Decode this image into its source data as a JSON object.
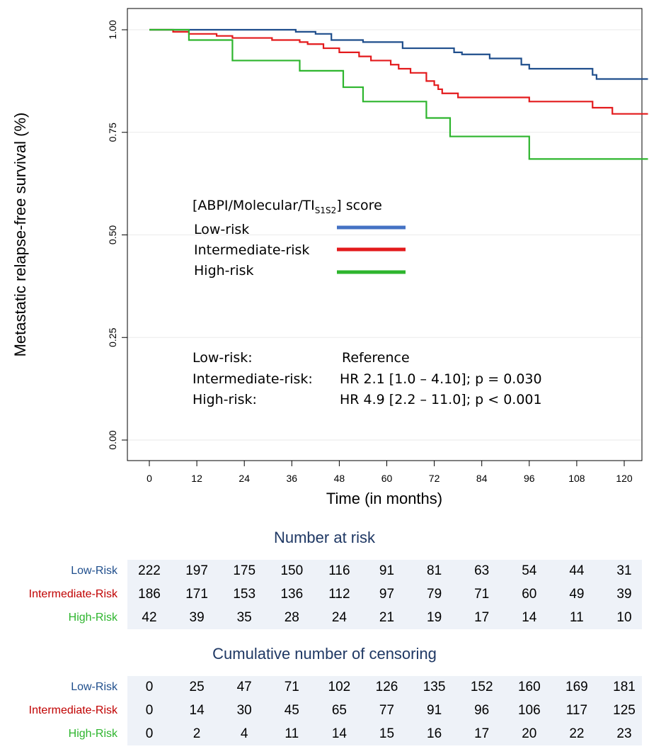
{
  "chart_data": {
    "type": "line",
    "ylabel": "Metastatic relapse-free survival (%)",
    "xlabel": "Time (in months)",
    "xlim": [
      0,
      126
    ],
    "ylim": [
      0,
      1.04
    ],
    "x_ticks": [
      0,
      12,
      24,
      36,
      48,
      60,
      72,
      84,
      96,
      108,
      120
    ],
    "y_ticks": [
      "0.00",
      "0.25",
      "0.50",
      "0.75",
      "1.00"
    ],
    "y_tick_values": [
      0,
      0.25,
      0.5,
      0.75,
      1.0
    ],
    "grid": "horizontal",
    "series": [
      {
        "name": "Low-risk",
        "color": "#1f4e8c",
        "x": [
          0,
          10,
          21,
          35,
          37,
          42,
          46,
          54,
          64,
          77,
          79,
          86,
          94,
          96,
          112,
          113,
          126
        ],
        "y": [
          1.0,
          1.0,
          1.0,
          1.0,
          0.995,
          0.99,
          0.975,
          0.97,
          0.955,
          0.945,
          0.94,
          0.93,
          0.915,
          0.905,
          0.89,
          0.88,
          0.88
        ]
      },
      {
        "name": "Intermediate-risk",
        "color": "#e31a1c",
        "x": [
          0,
          6,
          10,
          17,
          21,
          31,
          38,
          40,
          44,
          48,
          53,
          56,
          61,
          63,
          66,
          70,
          72,
          73,
          74,
          78,
          96,
          112,
          117,
          126
        ],
        "y": [
          1.0,
          0.995,
          0.99,
          0.985,
          0.98,
          0.975,
          0.97,
          0.965,
          0.955,
          0.945,
          0.935,
          0.925,
          0.915,
          0.905,
          0.895,
          0.875,
          0.865,
          0.855,
          0.845,
          0.835,
          0.825,
          0.81,
          0.795,
          0.795
        ]
      },
      {
        "name": "High-risk",
        "color": "#2db52d",
        "x": [
          0,
          10,
          21,
          38,
          49,
          54,
          70,
          76,
          96,
          126
        ],
        "y": [
          1.0,
          0.975,
          0.925,
          0.9,
          0.86,
          0.825,
          0.785,
          0.74,
          0.685,
          0.685
        ]
      }
    ]
  },
  "legend": {
    "title_main": "[ABPI/Molecular/TI",
    "title_sub": "S1S2",
    "title_end": "] score",
    "items": [
      {
        "label": "Low-risk",
        "color": "#4472c4"
      },
      {
        "label": "Intermediate-risk",
        "color": "#e31a1c"
      },
      {
        "label": "High-risk",
        "color": "#2db52d"
      }
    ]
  },
  "hazard_ratios": [
    {
      "group": "Low-risk:",
      "value": "Reference"
    },
    {
      "group": "Intermediate-risk:",
      "value": "HR 2.1 [1.0 – 4.10]; p = 0.030"
    },
    {
      "group": "High-risk:",
      "value": "HR 4.9 [2.2 – 11.0]; p < 0.001"
    }
  ],
  "risk_table": {
    "title": "Number at risk",
    "rows": [
      {
        "label": "Low-Risk",
        "color": "#1f4e8c",
        "values": [
          "222",
          "197",
          "175",
          "150",
          "116",
          "91",
          "81",
          "63",
          "54",
          "44",
          "31"
        ]
      },
      {
        "label": "Intermediate-Risk",
        "color": "#c00000",
        "values": [
          "186",
          "171",
          "153",
          "136",
          "112",
          "97",
          "79",
          "71",
          "60",
          "49",
          "39"
        ]
      },
      {
        "label": "High-Risk",
        "color": "#2db52d",
        "values": [
          "42",
          "39",
          "35",
          "28",
          "24",
          "21",
          "19",
          "17",
          "14",
          "11",
          "10"
        ]
      }
    ]
  },
  "censor_table": {
    "title": "Cumulative number of censoring",
    "rows": [
      {
        "label": "Low-Risk",
        "color": "#1f4e8c",
        "values": [
          "0",
          "25",
          "47",
          "71",
          "102",
          "126",
          "135",
          "152",
          "160",
          "169",
          "181"
        ]
      },
      {
        "label": "Intermediate-Risk",
        "color": "#c00000",
        "values": [
          "0",
          "14",
          "30",
          "45",
          "65",
          "77",
          "91",
          "96",
          "106",
          "117",
          "125"
        ]
      },
      {
        "label": "High-Risk",
        "color": "#2db52d",
        "values": [
          "0",
          "2",
          "4",
          "11",
          "14",
          "15",
          "16",
          "17",
          "20",
          "22",
          "23"
        ]
      }
    ]
  }
}
